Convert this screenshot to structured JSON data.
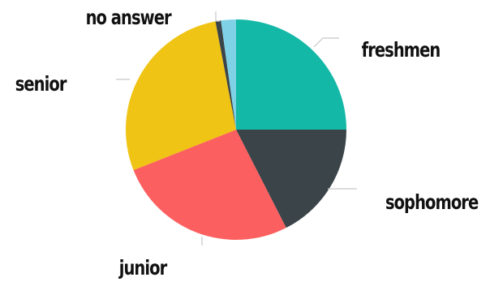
{
  "chart_data": {
    "type": "pie",
    "title": "",
    "slices": [
      {
        "label": "freshmen",
        "value": 25.0,
        "color": "#14b8a6"
      },
      {
        "label": "sophomore",
        "value": 17.5,
        "color": "#3a4449"
      },
      {
        "label": "junior",
        "value": 26.5,
        "color": "#fc5f5f"
      },
      {
        "label": "senior",
        "value": 28.0,
        "color": "#efc414"
      },
      {
        "label": "no answer",
        "value": 0.8,
        "color": "#3a4449"
      },
      {
        "label": "",
        "value": 2.2,
        "color": "#7fd1e6"
      }
    ],
    "legend": "none",
    "labels": "outside with leader lines"
  }
}
